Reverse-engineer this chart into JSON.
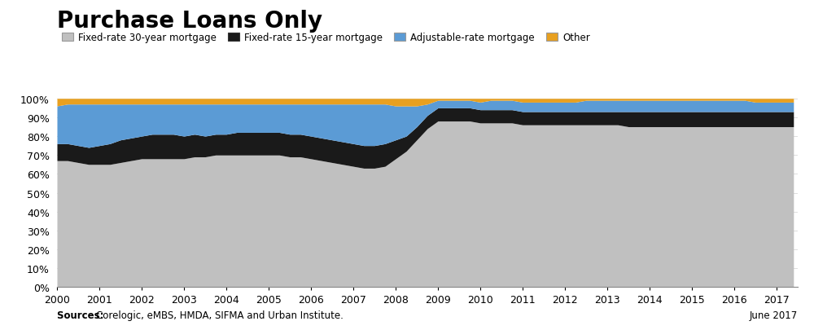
{
  "title": "Purchase Loans Only",
  "title_fontsize": 20,
  "legend_labels": [
    "Fixed-rate 30-year mortgage",
    "Fixed-rate 15-year mortgage",
    "Adjustable-rate mortgage",
    "Other"
  ],
  "colors": [
    "#c0c0c0",
    "#1a1a1a",
    "#5b9bd5",
    "#e8a020"
  ],
  "source_text": "Sources: Corelogic, eMBS, HMDA, SIFMA and Urban Institute.",
  "source_bold": "Sources:",
  "date_text": "June 2017",
  "years": [
    2000.0,
    2000.25,
    2000.5,
    2000.75,
    2001.0,
    2001.25,
    2001.5,
    2001.75,
    2002.0,
    2002.25,
    2002.5,
    2002.75,
    2003.0,
    2003.25,
    2003.5,
    2003.75,
    2004.0,
    2004.25,
    2004.5,
    2004.75,
    2005.0,
    2005.25,
    2005.5,
    2005.75,
    2006.0,
    2006.25,
    2006.5,
    2006.75,
    2007.0,
    2007.25,
    2007.5,
    2007.75,
    2008.0,
    2008.25,
    2008.5,
    2008.75,
    2009.0,
    2009.25,
    2009.5,
    2009.75,
    2010.0,
    2010.25,
    2010.5,
    2010.75,
    2011.0,
    2011.25,
    2011.5,
    2011.75,
    2012.0,
    2012.25,
    2012.5,
    2012.75,
    2013.0,
    2013.25,
    2013.5,
    2013.75,
    2014.0,
    2014.25,
    2014.5,
    2014.75,
    2015.0,
    2015.25,
    2015.5,
    2015.75,
    2016.0,
    2016.25,
    2016.5,
    2016.75,
    2017.0,
    2017.25,
    2017.4
  ],
  "fixed30": [
    0.67,
    0.67,
    0.66,
    0.65,
    0.65,
    0.65,
    0.66,
    0.67,
    0.68,
    0.68,
    0.68,
    0.68,
    0.68,
    0.69,
    0.69,
    0.7,
    0.7,
    0.7,
    0.7,
    0.7,
    0.7,
    0.7,
    0.69,
    0.69,
    0.68,
    0.67,
    0.66,
    0.65,
    0.64,
    0.63,
    0.63,
    0.64,
    0.68,
    0.72,
    0.78,
    0.84,
    0.88,
    0.88,
    0.88,
    0.88,
    0.87,
    0.87,
    0.87,
    0.87,
    0.86,
    0.86,
    0.86,
    0.86,
    0.86,
    0.86,
    0.86,
    0.86,
    0.86,
    0.86,
    0.85,
    0.85,
    0.85,
    0.85,
    0.85,
    0.85,
    0.85,
    0.85,
    0.85,
    0.85,
    0.85,
    0.85,
    0.85,
    0.85,
    0.85,
    0.85,
    0.85
  ],
  "fixed15": [
    0.09,
    0.09,
    0.09,
    0.09,
    0.1,
    0.11,
    0.12,
    0.12,
    0.12,
    0.13,
    0.13,
    0.13,
    0.12,
    0.12,
    0.11,
    0.11,
    0.11,
    0.12,
    0.12,
    0.12,
    0.12,
    0.12,
    0.12,
    0.12,
    0.12,
    0.12,
    0.12,
    0.12,
    0.12,
    0.12,
    0.12,
    0.12,
    0.1,
    0.08,
    0.07,
    0.07,
    0.07,
    0.07,
    0.07,
    0.07,
    0.07,
    0.07,
    0.07,
    0.07,
    0.07,
    0.07,
    0.07,
    0.07,
    0.07,
    0.07,
    0.07,
    0.07,
    0.07,
    0.07,
    0.08,
    0.08,
    0.08,
    0.08,
    0.08,
    0.08,
    0.08,
    0.08,
    0.08,
    0.08,
    0.08,
    0.08,
    0.08,
    0.08,
    0.08,
    0.08,
    0.08
  ],
  "arm": [
    0.2,
    0.21,
    0.22,
    0.23,
    0.22,
    0.21,
    0.19,
    0.18,
    0.17,
    0.16,
    0.16,
    0.16,
    0.17,
    0.16,
    0.17,
    0.16,
    0.16,
    0.15,
    0.15,
    0.15,
    0.15,
    0.15,
    0.16,
    0.16,
    0.17,
    0.18,
    0.19,
    0.2,
    0.21,
    0.22,
    0.22,
    0.21,
    0.18,
    0.16,
    0.11,
    0.06,
    0.04,
    0.04,
    0.04,
    0.04,
    0.04,
    0.05,
    0.05,
    0.05,
    0.05,
    0.05,
    0.05,
    0.05,
    0.05,
    0.05,
    0.06,
    0.06,
    0.06,
    0.06,
    0.06,
    0.06,
    0.06,
    0.06,
    0.06,
    0.06,
    0.06,
    0.06,
    0.06,
    0.06,
    0.06,
    0.06,
    0.05,
    0.05,
    0.05,
    0.05,
    0.05
  ],
  "other": [
    0.04,
    0.03,
    0.03,
    0.03,
    0.03,
    0.03,
    0.03,
    0.03,
    0.03,
    0.03,
    0.03,
    0.03,
    0.03,
    0.03,
    0.03,
    0.03,
    0.03,
    0.03,
    0.03,
    0.03,
    0.03,
    0.03,
    0.03,
    0.03,
    0.03,
    0.03,
    0.03,
    0.03,
    0.03,
    0.03,
    0.03,
    0.03,
    0.04,
    0.04,
    0.04,
    0.03,
    0.01,
    0.01,
    0.01,
    0.01,
    0.02,
    0.01,
    0.01,
    0.01,
    0.02,
    0.02,
    0.02,
    0.02,
    0.02,
    0.02,
    0.01,
    0.01,
    0.01,
    0.01,
    0.01,
    0.01,
    0.01,
    0.01,
    0.01,
    0.01,
    0.01,
    0.01,
    0.01,
    0.01,
    0.01,
    0.01,
    0.02,
    0.02,
    0.02,
    0.02,
    0.02
  ],
  "xticks": [
    2000,
    2001,
    2002,
    2003,
    2004,
    2005,
    2006,
    2007,
    2008,
    2009,
    2010,
    2011,
    2012,
    2013,
    2014,
    2015,
    2016,
    2017
  ],
  "yticks": [
    0.0,
    0.1,
    0.2,
    0.3,
    0.4,
    0.5,
    0.6,
    0.7,
    0.8,
    0.9,
    1.0
  ],
  "ylabels": [
    "0%",
    "10%",
    "20%",
    "30%",
    "40%",
    "50%",
    "60%",
    "70%",
    "80%",
    "90%",
    "100%"
  ],
  "background_color": "#ffffff",
  "grid_color": "#d0d0d0"
}
